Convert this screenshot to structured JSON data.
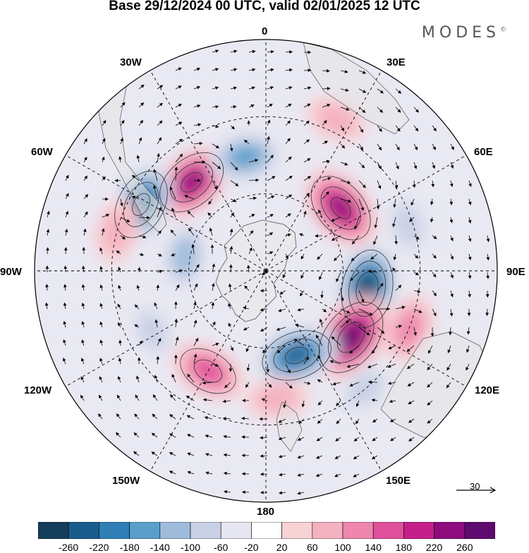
{
  "title": "Base 29/12/2024 00 UTC, valid 02/01/2025 12 UTC",
  "brand": "MODES",
  "brand_mark": "©",
  "longitude_labels": {
    "lon_0": "0",
    "lon_30e": "30E",
    "lon_60e": "60E",
    "lon_90e": "90E",
    "lon_120e": "120E",
    "lon_150e": "150E",
    "lon_180": "180",
    "lon_150w": "150W",
    "lon_120w": "120W",
    "lon_90w": "90W",
    "lon_60w": "60W",
    "lon_30w": "30W"
  },
  "reference_vector": "30",
  "colorbar": {
    "ticks": [
      "-260",
      "-220",
      "-180",
      "-140",
      "-100",
      "-60",
      "-20",
      "20",
      "60",
      "100",
      "140",
      "180",
      "220",
      "260"
    ],
    "colors": [
      "#153d5c",
      "#1a5c8c",
      "#2f7fb6",
      "#5a9fcc",
      "#9fbcdc",
      "#c9d1e6",
      "#e6e6f0",
      "#ffffff",
      "#f8d3d6",
      "#f4b1c0",
      "#ee86ad",
      "#e0509a",
      "#c4208a",
      "#8e0c7e",
      "#5e0a6e"
    ]
  },
  "anomaly_features": [
    {
      "name": "neg-core-90e",
      "sign": "negative",
      "intensity": 0.95,
      "lon": 100,
      "lat": -50
    },
    {
      "name": "pos-core-120e",
      "sign": "positive",
      "intensity": 1.0,
      "lon": 128,
      "lat": -48
    },
    {
      "name": "pos-core-45e",
      "sign": "positive",
      "intensity": 0.85,
      "lon": 50,
      "lat": -52
    },
    {
      "name": "neg-core-155e",
      "sign": "negative",
      "intensity": 0.8,
      "lon": 160,
      "lat": -55
    },
    {
      "name": "pos-core-40w",
      "sign": "positive",
      "intensity": 0.85,
      "lon": -40,
      "lat": -45
    },
    {
      "name": "neg-core-60w",
      "sign": "negative",
      "intensity": 0.8,
      "lon": -62,
      "lat": -35
    },
    {
      "name": "neg-band-20w",
      "sign": "negative",
      "intensity": 0.55,
      "lon": -10,
      "lat": -45
    },
    {
      "name": "pos-band-140w",
      "sign": "positive",
      "intensity": 0.6,
      "lon": -150,
      "lat": -45
    },
    {
      "name": "neg-band-80w",
      "sign": "negative",
      "intensity": 0.45,
      "lon": -80,
      "lat": -58
    },
    {
      "name": "pos-band-75w",
      "sign": "positive",
      "intensity": 0.35,
      "lon": -75,
      "lat": -30
    },
    {
      "name": "pos-band-105e",
      "sign": "positive",
      "intensity": 0.45,
      "lon": 112,
      "lat": -30
    },
    {
      "name": "neg-band-70e",
      "sign": "negative",
      "intensity": 0.3,
      "lon": 72,
      "lat": -32
    },
    {
      "name": "pos-band-20e",
      "sign": "positive",
      "intensity": 0.3,
      "lon": 25,
      "lat": -25
    },
    {
      "name": "neg-band-140e",
      "sign": "negative",
      "intensity": 0.3,
      "lon": 140,
      "lat": -30
    },
    {
      "name": "neg-band-120w",
      "sign": "negative",
      "intensity": 0.25,
      "lon": -118,
      "lat": -40
    },
    {
      "name": "pos-band-170e",
      "sign": "positive",
      "intensity": 0.3,
      "lon": 175,
      "lat": -40
    }
  ]
}
